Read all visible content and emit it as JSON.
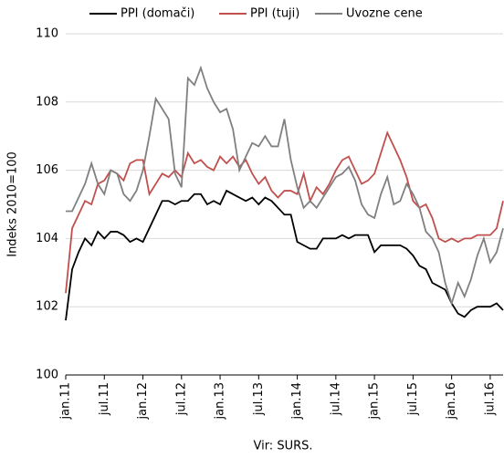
{
  "chart_data": {
    "type": "line",
    "y_label": "Indeks 2010=100",
    "source": "Vir: SURS.",
    "categories": [
      "jan.11",
      null,
      null,
      null,
      null,
      null,
      "jul.11",
      null,
      null,
      null,
      null,
      null,
      "jan.12",
      null,
      null,
      null,
      null,
      null,
      "jul.12",
      null,
      null,
      null,
      null,
      null,
      "jan.13",
      null,
      null,
      null,
      null,
      null,
      "jul.13",
      null,
      null,
      null,
      null,
      null,
      "jan.14",
      null,
      null,
      null,
      null,
      null,
      "jul.14",
      null,
      null,
      null,
      null,
      null,
      "jan.15",
      null,
      null,
      null,
      null,
      null,
      "jul.15",
      null,
      null,
      null,
      null,
      null,
      "jan.16",
      null,
      null,
      null,
      null,
      null,
      "jul.16",
      null,
      null
    ],
    "series": [
      {
        "name": "PPI (domači)",
        "color": "#000000",
        "values": [
          101.6,
          103.1,
          103.6,
          104.0,
          103.8,
          104.2,
          104.0,
          104.2,
          104.2,
          104.1,
          103.9,
          104.0,
          103.9,
          104.3,
          104.7,
          105.1,
          105.1,
          105.0,
          105.1,
          105.1,
          105.3,
          105.3,
          105.0,
          105.1,
          105.0,
          105.4,
          105.3,
          105.2,
          105.1,
          105.2,
          105.0,
          105.2,
          105.1,
          104.9,
          104.7,
          104.7,
          103.9,
          103.8,
          103.7,
          103.7,
          104.0,
          104.0,
          104.0,
          104.1,
          104.0,
          104.1,
          104.1,
          104.1,
          103.6,
          103.8,
          103.8,
          103.8,
          103.8,
          103.7,
          103.5,
          103.2,
          103.1,
          102.7,
          102.6,
          102.5,
          102.1,
          101.8,
          101.7,
          101.9,
          102.0,
          102.0,
          102.0,
          102.1,
          101.9
        ]
      },
      {
        "name": "PPI (tuji)",
        "color": "#c0504d",
        "values": [
          102.4,
          104.3,
          104.7,
          105.1,
          105.0,
          105.6,
          105.7,
          106.0,
          105.9,
          105.7,
          106.2,
          106.3,
          106.3,
          105.3,
          105.6,
          105.9,
          105.8,
          106.0,
          105.8,
          106.5,
          106.2,
          106.3,
          106.1,
          106.0,
          106.4,
          106.2,
          106.4,
          106.1,
          106.3,
          105.9,
          105.6,
          105.8,
          105.4,
          105.2,
          105.4,
          105.4,
          105.3,
          105.9,
          105.1,
          105.5,
          105.3,
          105.6,
          106.0,
          106.3,
          106.4,
          106.0,
          105.6,
          105.7,
          105.9,
          106.5,
          107.1,
          106.7,
          106.3,
          105.8,
          105.1,
          104.9,
          105.0,
          104.6,
          104.0,
          103.9,
          104.0,
          103.9,
          104.0,
          104.0,
          104.1,
          104.1,
          104.1,
          104.3,
          105.1
        ]
      },
      {
        "name": "Uvozne cene",
        "color": "#808080",
        "values": [
          104.8,
          104.8,
          105.2,
          105.6,
          106.2,
          105.6,
          105.3,
          106.0,
          105.9,
          105.3,
          105.1,
          105.4,
          106.0,
          107.0,
          108.1,
          107.8,
          107.5,
          105.9,
          105.5,
          108.7,
          108.5,
          109.0,
          108.4,
          108.0,
          107.7,
          107.8,
          107.2,
          106.0,
          106.4,
          106.8,
          106.7,
          107.0,
          106.7,
          106.7,
          107.5,
          106.3,
          105.5,
          104.9,
          105.1,
          104.9,
          105.2,
          105.5,
          105.8,
          105.9,
          106.1,
          105.7,
          105.0,
          104.7,
          104.6,
          105.3,
          105.8,
          105.0,
          105.1,
          105.6,
          105.3,
          104.9,
          104.2,
          104.0,
          103.6,
          102.7,
          102.1,
          102.7,
          102.3,
          102.8,
          103.5,
          104.0,
          103.3,
          103.6,
          104.3
        ]
      }
    ],
    "ylim": [
      100,
      110
    ],
    "yticks": [
      100,
      102,
      104,
      106,
      108,
      110
    ],
    "grid": true
  }
}
